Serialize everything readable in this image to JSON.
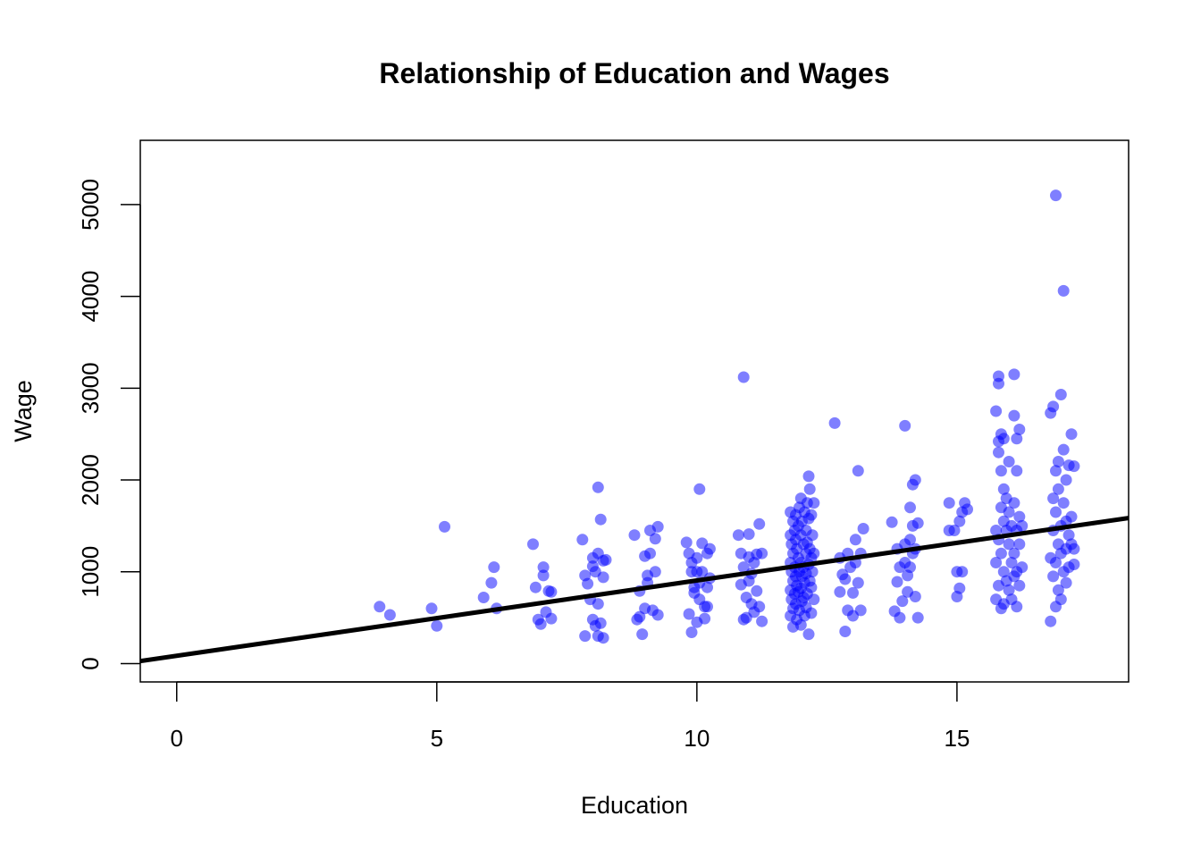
{
  "chart_data": {
    "type": "scatter",
    "title": "Relationship of Education and Wages",
    "xlabel": "Education",
    "ylabel": "Wage",
    "xlim": [
      -0.7,
      18.3
    ],
    "ylim": [
      -200,
      5700
    ],
    "xticks": [
      0,
      5,
      10,
      15
    ],
    "yticks": [
      0,
      1000,
      2000,
      3000,
      4000,
      5000
    ],
    "grid": false,
    "legend": "none",
    "point_color": "#0000ff",
    "line_color": "#000000",
    "fit_line": {
      "intercept": 85,
      "slope": 82
    },
    "series": [
      {
        "points": [
          [
            3.9,
            620
          ],
          [
            4.1,
            530
          ],
          [
            4.9,
            600
          ],
          [
            5.0,
            410
          ],
          [
            5.15,
            1490
          ],
          [
            5.9,
            720
          ],
          [
            6.05,
            880
          ],
          [
            6.1,
            1050
          ],
          [
            6.15,
            600
          ],
          [
            6.85,
            1300
          ],
          [
            6.9,
            830
          ],
          [
            6.95,
            480
          ],
          [
            7.0,
            430
          ],
          [
            7.05,
            1050
          ],
          [
            7.05,
            960
          ],
          [
            7.1,
            560
          ],
          [
            7.15,
            790
          ],
          [
            7.2,
            490
          ],
          [
            7.2,
            780
          ],
          [
            7.8,
            1350
          ],
          [
            7.85,
            300
          ],
          [
            7.85,
            960
          ],
          [
            7.9,
            870
          ],
          [
            7.95,
            700
          ],
          [
            8.0,
            480
          ],
          [
            8.0,
            1150
          ],
          [
            8.0,
            1060
          ],
          [
            8.05,
            1000
          ],
          [
            8.05,
            410
          ],
          [
            8.1,
            1920
          ],
          [
            8.1,
            1200
          ],
          [
            8.1,
            650
          ],
          [
            8.15,
            1570
          ],
          [
            8.15,
            440
          ],
          [
            8.2,
            1120
          ],
          [
            8.2,
            940
          ],
          [
            8.2,
            280
          ],
          [
            8.25,
            1130
          ],
          [
            8.1,
            300
          ],
          [
            8.8,
            1400
          ],
          [
            8.85,
            480
          ],
          [
            8.9,
            790
          ],
          [
            8.9,
            510
          ],
          [
            8.95,
            320
          ],
          [
            9.0,
            1170
          ],
          [
            9.0,
            600
          ],
          [
            9.05,
            880
          ],
          [
            9.05,
            960
          ],
          [
            9.1,
            1200
          ],
          [
            9.1,
            1450
          ],
          [
            9.15,
            580
          ],
          [
            9.2,
            1360
          ],
          [
            9.2,
            1000
          ],
          [
            9.25,
            530
          ],
          [
            9.25,
            1490
          ],
          [
            9.8,
            1320
          ],
          [
            9.85,
            1200
          ],
          [
            9.85,
            540
          ],
          [
            9.9,
            1100
          ],
          [
            9.9,
            1000
          ],
          [
            9.9,
            340
          ],
          [
            9.95,
            830
          ],
          [
            9.95,
            770
          ],
          [
            10.0,
            1150
          ],
          [
            10.0,
            1000
          ],
          [
            10.0,
            450
          ],
          [
            10.05,
            1900
          ],
          [
            10.05,
            880
          ],
          [
            10.05,
            700
          ],
          [
            10.1,
            1310
          ],
          [
            10.1,
            1000
          ],
          [
            10.15,
            620
          ],
          [
            10.15,
            490
          ],
          [
            10.2,
            1200
          ],
          [
            10.2,
            830
          ],
          [
            10.2,
            620
          ],
          [
            10.25,
            1250
          ],
          [
            10.25,
            930
          ],
          [
            10.8,
            1400
          ],
          [
            10.85,
            1200
          ],
          [
            10.85,
            860
          ],
          [
            10.9,
            3120
          ],
          [
            10.9,
            1050
          ],
          [
            10.9,
            480
          ],
          [
            10.95,
            720
          ],
          [
            10.95,
            500
          ],
          [
            11.0,
            1410
          ],
          [
            11.0,
            1160
          ],
          [
            11.0,
            900
          ],
          [
            11.05,
            980
          ],
          [
            11.05,
            650
          ],
          [
            11.1,
            1100
          ],
          [
            11.1,
            560
          ],
          [
            11.15,
            1190
          ],
          [
            11.15,
            790
          ],
          [
            11.2,
            1520
          ],
          [
            11.2,
            620
          ],
          [
            11.25,
            1200
          ],
          [
            11.25,
            460
          ],
          [
            11.8,
            1650
          ],
          [
            11.8,
            1400
          ],
          [
            11.8,
            1100
          ],
          [
            11.8,
            800
          ],
          [
            11.8,
            520
          ],
          [
            11.82,
            1300
          ],
          [
            11.82,
            1000
          ],
          [
            11.82,
            700
          ],
          [
            11.85,
            1550
          ],
          [
            11.85,
            1200
          ],
          [
            11.85,
            900
          ],
          [
            11.85,
            600
          ],
          [
            11.85,
            400
          ],
          [
            11.88,
            1450
          ],
          [
            11.88,
            1050
          ],
          [
            11.88,
            760
          ],
          [
            11.9,
            1620
          ],
          [
            11.9,
            1350
          ],
          [
            11.9,
            950
          ],
          [
            11.9,
            650
          ],
          [
            11.92,
            1250
          ],
          [
            11.92,
            850
          ],
          [
            11.92,
            480
          ],
          [
            11.95,
            1500
          ],
          [
            11.95,
            1150
          ],
          [
            11.95,
            780
          ],
          [
            11.97,
            1700
          ],
          [
            11.97,
            1000
          ],
          [
            11.97,
            580
          ],
          [
            12.0,
            1800
          ],
          [
            12.0,
            1400
          ],
          [
            12.0,
            1100
          ],
          [
            12.0,
            820
          ],
          [
            12.0,
            420
          ],
          [
            12.02,
            1550
          ],
          [
            12.02,
            950
          ],
          [
            12.02,
            680
          ],
          [
            12.05,
            1300
          ],
          [
            12.05,
            1050
          ],
          [
            12.05,
            720
          ],
          [
            12.07,
            1650
          ],
          [
            12.07,
            880
          ],
          [
            12.07,
            520
          ],
          [
            12.1,
            1450
          ],
          [
            12.1,
            1200
          ],
          [
            12.1,
            980
          ],
          [
            12.1,
            610
          ],
          [
            12.12,
            1750
          ],
          [
            12.12,
            1320
          ],
          [
            12.12,
            760
          ],
          [
            12.15,
            2040
          ],
          [
            12.15,
            1580
          ],
          [
            12.15,
            1080
          ],
          [
            12.15,
            320
          ],
          [
            12.17,
            1900
          ],
          [
            12.17,
            1250
          ],
          [
            12.17,
            900
          ],
          [
            12.2,
            1620
          ],
          [
            12.2,
            1150
          ],
          [
            12.2,
            830
          ],
          [
            12.2,
            550
          ],
          [
            12.22,
            1400
          ],
          [
            12.22,
            1000
          ],
          [
            12.25,
            1750
          ],
          [
            12.25,
            1200
          ],
          [
            12.25,
            700
          ],
          [
            12.65,
            2620
          ],
          [
            12.75,
            1150
          ],
          [
            12.75,
            780
          ],
          [
            12.8,
            970
          ],
          [
            12.85,
            920
          ],
          [
            12.85,
            350
          ],
          [
            12.9,
            1200
          ],
          [
            12.9,
            580
          ],
          [
            12.95,
            1050
          ],
          [
            13.0,
            770
          ],
          [
            13.0,
            520
          ],
          [
            13.05,
            1100
          ],
          [
            13.05,
            1350
          ],
          [
            13.1,
            2100
          ],
          [
            13.1,
            880
          ],
          [
            13.15,
            1200
          ],
          [
            13.15,
            580
          ],
          [
            13.2,
            1470
          ],
          [
            13.75,
            1540
          ],
          [
            13.8,
            570
          ],
          [
            13.85,
            1250
          ],
          [
            13.85,
            890
          ],
          [
            13.9,
            1050
          ],
          [
            13.9,
            500
          ],
          [
            13.95,
            680
          ],
          [
            14.0,
            1300
          ],
          [
            14.0,
            1100
          ],
          [
            14.0,
            2590
          ],
          [
            14.05,
            960
          ],
          [
            14.05,
            780
          ],
          [
            14.1,
            1700
          ],
          [
            14.1,
            1350
          ],
          [
            14.1,
            1050
          ],
          [
            14.15,
            1950
          ],
          [
            14.15,
            1500
          ],
          [
            14.15,
            1200
          ],
          [
            14.2,
            2000
          ],
          [
            14.2,
            1250
          ],
          [
            14.2,
            730
          ],
          [
            14.25,
            1530
          ],
          [
            14.25,
            500
          ],
          [
            14.85,
            1750
          ],
          [
            14.85,
            1450
          ],
          [
            14.95,
            1450
          ],
          [
            15.0,
            1000
          ],
          [
            15.0,
            730
          ],
          [
            15.05,
            1550
          ],
          [
            15.05,
            820
          ],
          [
            15.1,
            1000
          ],
          [
            15.1,
            1650
          ],
          [
            15.15,
            1750
          ],
          [
            15.2,
            1680
          ],
          [
            15.75,
            2750
          ],
          [
            15.75,
            1450
          ],
          [
            15.75,
            1100
          ],
          [
            15.75,
            700
          ],
          [
            15.8,
            3130
          ],
          [
            15.8,
            3050
          ],
          [
            15.8,
            2420
          ],
          [
            15.8,
            2300
          ],
          [
            15.8,
            1350
          ],
          [
            15.8,
            850
          ],
          [
            15.85,
            2500
          ],
          [
            15.85,
            2100
          ],
          [
            15.85,
            1700
          ],
          [
            15.85,
            1200
          ],
          [
            15.85,
            600
          ],
          [
            15.9,
            2450
          ],
          [
            15.9,
            1900
          ],
          [
            15.9,
            1550
          ],
          [
            15.9,
            1000
          ],
          [
            15.9,
            650
          ],
          [
            15.95,
            1800
          ],
          [
            15.95,
            1450
          ],
          [
            15.95,
            900
          ],
          [
            16.0,
            2200
          ],
          [
            16.0,
            1650
          ],
          [
            16.0,
            1300
          ],
          [
            16.0,
            800
          ],
          [
            16.05,
            1500
          ],
          [
            16.05,
            1100
          ],
          [
            16.05,
            700
          ],
          [
            16.1,
            3150
          ],
          [
            16.1,
            2700
          ],
          [
            16.1,
            1750
          ],
          [
            16.1,
            1200
          ],
          [
            16.1,
            950
          ],
          [
            16.15,
            2450
          ],
          [
            16.15,
            2100
          ],
          [
            16.15,
            1450
          ],
          [
            16.15,
            1000
          ],
          [
            16.15,
            620
          ],
          [
            16.2,
            2550
          ],
          [
            16.2,
            1600
          ],
          [
            16.2,
            1300
          ],
          [
            16.2,
            850
          ],
          [
            16.25,
            1500
          ],
          [
            16.25,
            1050
          ],
          [
            16.8,
            2730
          ],
          [
            16.8,
            1150
          ],
          [
            16.8,
            460
          ],
          [
            16.85,
            2800
          ],
          [
            16.85,
            1800
          ],
          [
            16.85,
            1450
          ],
          [
            16.85,
            950
          ],
          [
            16.9,
            5100
          ],
          [
            16.9,
            2100
          ],
          [
            16.9,
            1650
          ],
          [
            16.9,
            1100
          ],
          [
            16.9,
            620
          ],
          [
            16.95,
            2200
          ],
          [
            16.95,
            1900
          ],
          [
            16.95,
            1300
          ],
          [
            16.95,
            800
          ],
          [
            17.0,
            2930
          ],
          [
            17.0,
            1500
          ],
          [
            17.0,
            1200
          ],
          [
            17.0,
            700
          ],
          [
            17.05,
            4060
          ],
          [
            17.05,
            2330
          ],
          [
            17.05,
            1750
          ],
          [
            17.05,
            1000
          ],
          [
            17.1,
            2000
          ],
          [
            17.1,
            1550
          ],
          [
            17.1,
            1250
          ],
          [
            17.1,
            880
          ],
          [
            17.15,
            2160
          ],
          [
            17.15,
            1400
          ],
          [
            17.15,
            1050
          ],
          [
            17.2,
            2500
          ],
          [
            17.2,
            1600
          ],
          [
            17.2,
            1300
          ],
          [
            17.25,
            2150
          ],
          [
            17.25,
            1250
          ],
          [
            17.25,
            1080
          ]
        ]
      }
    ]
  }
}
